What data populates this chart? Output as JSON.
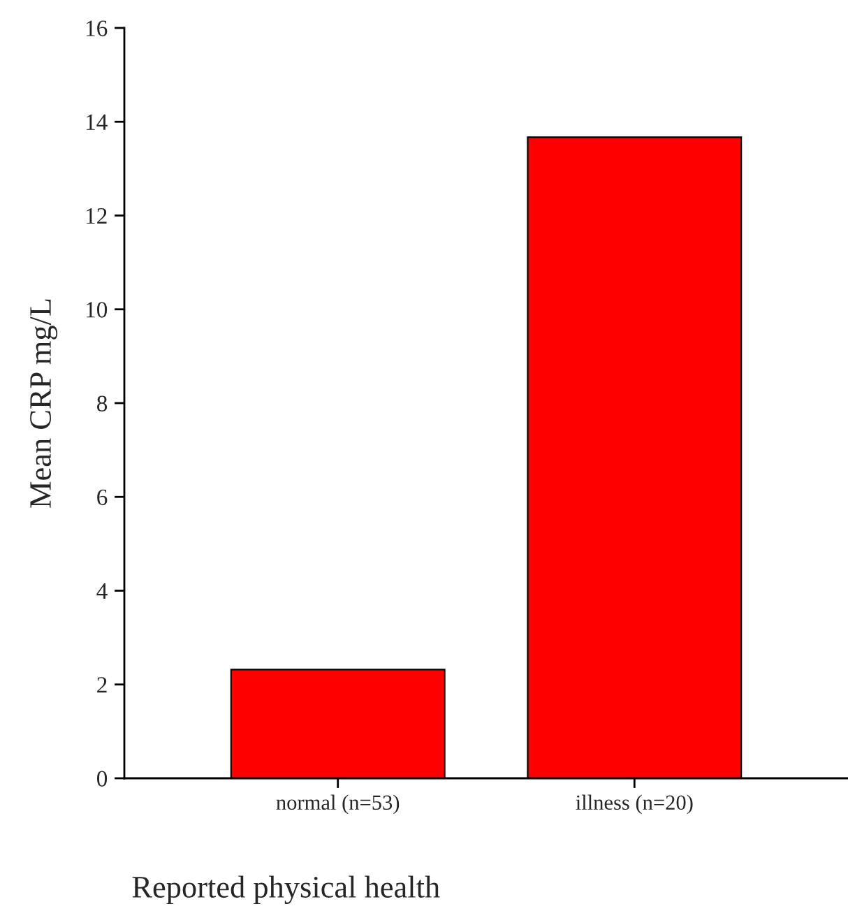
{
  "chart_data": {
    "type": "bar",
    "xlabel": "Reported physical health",
    "ylabel": "Mean CRP mg/L",
    "categories": [
      "normal (n=53)",
      "illness (n=20)"
    ],
    "values": [
      2.32,
      13.67
    ],
    "color": "#ff0000",
    "ylim": [
      0,
      16
    ],
    "yticks": [
      0,
      2,
      4,
      6,
      8,
      10,
      12,
      14,
      16
    ],
    "grid": false,
    "legend": false
  }
}
